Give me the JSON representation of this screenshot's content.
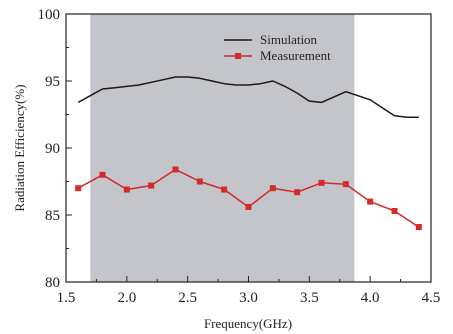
{
  "chart_data": {
    "type": "line",
    "title": "",
    "xlabel": "Frequency(GHz)",
    "ylabel": "Radiation Efficiency(%)",
    "xlim": [
      1.5,
      4.5
    ],
    "ylim": [
      80,
      100
    ],
    "xticks": [
      1.5,
      2.0,
      2.5,
      3.0,
      3.5,
      4.0,
      4.5
    ],
    "xtick_labels": [
      "1.5",
      "2.0",
      "2.5",
      "3.0",
      "3.5",
      "4.0",
      "4.5"
    ],
    "yticks": [
      80,
      85,
      90,
      95,
      100
    ],
    "ytick_labels": [
      "80",
      "85",
      "90",
      "95",
      "100"
    ],
    "grid": false,
    "legend_position": "top-right",
    "shaded_band": {
      "x_start": 1.7,
      "x_end": 3.87,
      "color": "#c3c5cb"
    },
    "series": [
      {
        "name": "Simulation",
        "color": "#1a1a1a",
        "marker": "none",
        "x": [
          1.6,
          1.7,
          1.8,
          1.9,
          2.0,
          2.1,
          2.2,
          2.3,
          2.4,
          2.5,
          2.6,
          2.7,
          2.8,
          2.9,
          3.0,
          3.1,
          3.2,
          3.3,
          3.4,
          3.5,
          3.6,
          3.7,
          3.8,
          3.9,
          4.0,
          4.1,
          4.2,
          4.3,
          4.4
        ],
        "values": [
          93.4,
          93.9,
          94.4,
          94.5,
          94.6,
          94.7,
          94.9,
          95.1,
          95.3,
          95.3,
          95.2,
          95.0,
          94.8,
          94.7,
          94.7,
          94.8,
          95.0,
          94.6,
          94.1,
          93.5,
          93.4,
          93.8,
          94.2,
          93.9,
          93.6,
          93.0,
          92.4,
          92.3,
          92.3
        ]
      },
      {
        "name": "Measurement",
        "color": "#d42a2a",
        "marker": "square",
        "x": [
          1.6,
          1.8,
          2.0,
          2.2,
          2.4,
          2.6,
          2.8,
          3.0,
          3.2,
          3.4,
          3.6,
          3.8,
          4.0,
          4.2,
          4.4
        ],
        "values": [
          87.0,
          88.0,
          86.9,
          87.2,
          88.4,
          87.5,
          86.9,
          85.6,
          87.0,
          86.7,
          87.4,
          87.3,
          86.0,
          85.3,
          84.1
        ]
      }
    ]
  }
}
